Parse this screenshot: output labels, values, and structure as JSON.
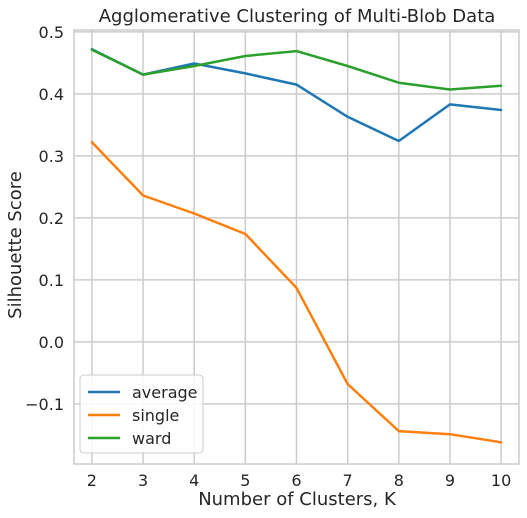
{
  "chart_data": {
    "type": "line",
    "title": "Agglomerative Clustering of Multi-Blob Data",
    "xlabel": "Number of Clusters, K",
    "ylabel": "Silhouette Score",
    "x": [
      2,
      3,
      4,
      5,
      6,
      7,
      8,
      9,
      10
    ],
    "xlim": [
      1.65,
      10.35
    ],
    "ylim": [
      -0.197,
      0.503
    ],
    "xticks": [
      2,
      3,
      4,
      5,
      6,
      7,
      8,
      9,
      10
    ],
    "xtick_labels": [
      "2",
      "3",
      "4",
      "5",
      "6",
      "7",
      "8",
      "9",
      "10"
    ],
    "yticks": [
      -0.1,
      0.0,
      0.1,
      0.2,
      0.3,
      0.4,
      0.5
    ],
    "ytick_labels": [
      "−0.1",
      "0.0",
      "0.1",
      "0.2",
      "0.3",
      "0.4",
      "0.5"
    ],
    "grid": true,
    "legend_position": "lower-left",
    "series": [
      {
        "name": "average",
        "color": "#1f77b4",
        "values": [
          0.472,
          0.431,
          0.449,
          0.433,
          0.415,
          0.363,
          0.324,
          0.383,
          0.374
        ]
      },
      {
        "name": "single",
        "color": "#ff7f0e",
        "values": [
          0.322,
          0.236,
          0.207,
          0.174,
          0.087,
          -0.068,
          -0.144,
          -0.149,
          -0.162
        ]
      },
      {
        "name": "ward",
        "color": "#2ca02c",
        "values": [
          0.471,
          0.431,
          0.445,
          0.461,
          0.469,
          0.445,
          0.418,
          0.407,
          0.413
        ]
      }
    ]
  }
}
